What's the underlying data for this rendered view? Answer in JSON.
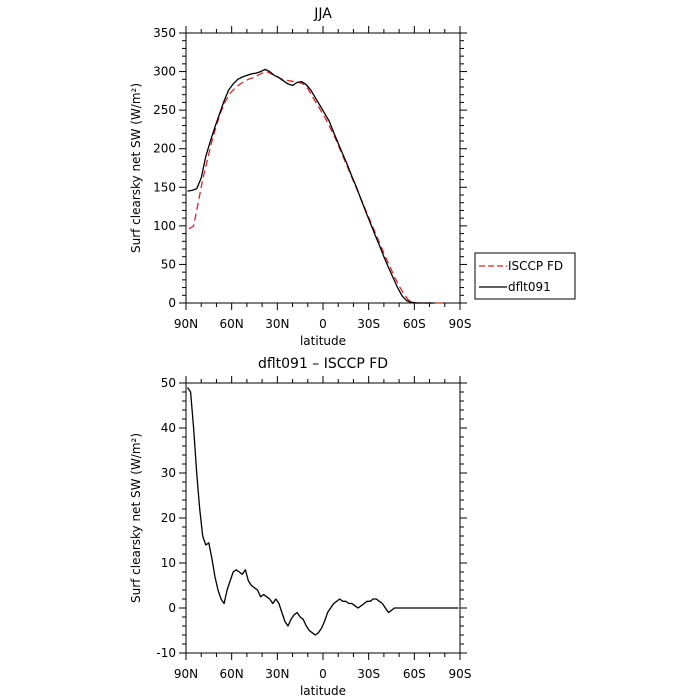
{
  "chart_data": [
    {
      "type": "line",
      "title": "JJA",
      "xlabel": "latitude",
      "ylabel": "Surf clearsky net SW (W/m²)",
      "xlim": [
        90,
        -90
      ],
      "ylim": [
        0,
        350
      ],
      "x_ticks": [
        90,
        60,
        30,
        0,
        -30,
        -60,
        -90
      ],
      "x_tick_labels": [
        "90N",
        "60N",
        "30N",
        "0",
        "30S",
        "60S",
        "90S"
      ],
      "y_ticks": [
        0,
        50,
        100,
        150,
        200,
        250,
        300,
        350
      ],
      "legend": "right, outside",
      "series": [
        {
          "name": "ISCCP FD",
          "color": "#d62728",
          "dash": "dashed",
          "x": [
            88,
            85,
            82,
            79,
            76,
            73,
            70,
            67,
            64,
            61,
            58,
            55,
            52,
            49,
            46,
            43,
            40,
            37,
            34,
            31,
            28,
            25,
            22,
            19,
            16,
            13,
            10,
            7,
            4,
            1,
            -2,
            -5,
            -8,
            -11,
            -14,
            -17,
            -20,
            -23,
            -26,
            -29,
            -32,
            -35,
            -38,
            -41,
            -44,
            -47,
            -50,
            -53,
            -56,
            -59,
            -62,
            -65,
            -68,
            -71,
            -74,
            -77,
            -80
          ],
          "y": [
            96,
            100,
            130,
            160,
            185,
            210,
            230,
            248,
            262,
            272,
            278,
            283,
            287,
            290,
            292,
            295,
            298,
            300,
            297,
            295,
            291,
            289,
            288,
            287,
            286,
            284,
            278,
            268,
            258,
            248,
            238,
            226,
            214,
            200,
            186,
            172,
            158,
            144,
            130,
            116,
            102,
            88,
            74,
            60,
            47,
            34,
            22,
            12,
            4,
            1,
            0,
            0,
            0,
            0,
            0,
            0,
            0
          ]
        },
        {
          "name": "dflt091",
          "color": "#000000",
          "dash": "solid",
          "x": [
            89,
            86,
            83,
            80,
            77,
            74,
            71,
            68,
            65,
            62,
            59,
            56,
            53,
            50,
            47,
            44,
            41,
            38,
            35,
            32,
            29,
            26,
            23,
            20,
            17,
            14,
            11,
            8,
            5,
            2,
            -1,
            -4,
            -7,
            -10,
            -13,
            -16,
            -19,
            -22,
            -25,
            -28,
            -31,
            -34,
            -37,
            -40,
            -43,
            -46,
            -49,
            -52,
            -55,
            -58,
            -61,
            -64,
            -67,
            -70,
            -73
          ],
          "y": [
            145,
            146,
            148,
            162,
            190,
            210,
            228,
            245,
            262,
            276,
            284,
            290,
            293,
            295,
            297,
            298,
            300,
            303,
            300,
            295,
            292,
            288,
            284,
            282,
            286,
            287,
            283,
            276,
            266,
            256,
            246,
            236,
            221,
            207,
            193,
            179,
            164,
            150,
            134,
            119,
            104,
            89,
            75,
            60,
            46,
            33,
            20,
            9,
            3,
            1,
            0,
            0,
            0,
            0,
            0
          ]
        }
      ]
    },
    {
      "type": "line",
      "title": "dflt091 – ISCCP FD",
      "xlabel": "latitude",
      "ylabel": "Surf clearsky net SW (W/m²)",
      "xlim": [
        90,
        -90
      ],
      "ylim": [
        -10,
        50
      ],
      "x_ticks": [
        90,
        60,
        30,
        0,
        -30,
        -60,
        -90
      ],
      "x_tick_labels": [
        "90N",
        "60N",
        "30N",
        "0",
        "30S",
        "60S",
        "90S"
      ],
      "y_ticks": [
        -10,
        0,
        10,
        20,
        30,
        40,
        50
      ],
      "series": [
        {
          "color": "#000000",
          "dash": "solid",
          "x": [
            89,
            87,
            85,
            83,
            81,
            79,
            77,
            75,
            73,
            71,
            69,
            67,
            65,
            63,
            61,
            59,
            57,
            55,
            53,
            51,
            49,
            47,
            45,
            43,
            41,
            39,
            37,
            35,
            33,
            31,
            29,
            27,
            25,
            23,
            21,
            19,
            17,
            15,
            13,
            11,
            9,
            7,
            5,
            3,
            1,
            -1,
            -3,
            -5,
            -7,
            -9,
            -11,
            -13,
            -15,
            -17,
            -19,
            -21,
            -23,
            -25,
            -27,
            -29,
            -31,
            -33,
            -35,
            -37,
            -39,
            -41,
            -43,
            -45,
            -47,
            -49,
            -51,
            -53,
            -55,
            -57,
            -59,
            -61,
            -63,
            -65,
            -67,
            -69,
            -71,
            -73,
            -75,
            -77,
            -79,
            -81,
            -83,
            -85,
            -87,
            -89
          ],
          "y": [
            49,
            48,
            40,
            30,
            22,
            16,
            14,
            14.5,
            11,
            7,
            4,
            2,
            1,
            4,
            6,
            8,
            8.5,
            8,
            7.5,
            8.5,
            6,
            5,
            4.5,
            4,
            2.5,
            3,
            2.5,
            2,
            1,
            2,
            1,
            -1,
            -3,
            -4,
            -2.5,
            -1.5,
            -1,
            -2,
            -2.5,
            -4,
            -5,
            -5.5,
            -6,
            -5.5,
            -4.5,
            -3,
            -1,
            0,
            1,
            1.5,
            2,
            1.5,
            1.5,
            1,
            1,
            0.5,
            0,
            0.5,
            1,
            1.5,
            1.5,
            2,
            2,
            1.5,
            1,
            0,
            -1,
            -0.5,
            0,
            0,
            0,
            0,
            0,
            0,
            0,
            0,
            0,
            0,
            0,
            0,
            0,
            0,
            0,
            0,
            0,
            0,
            0,
            0,
            0,
            0
          ]
        }
      ]
    }
  ]
}
